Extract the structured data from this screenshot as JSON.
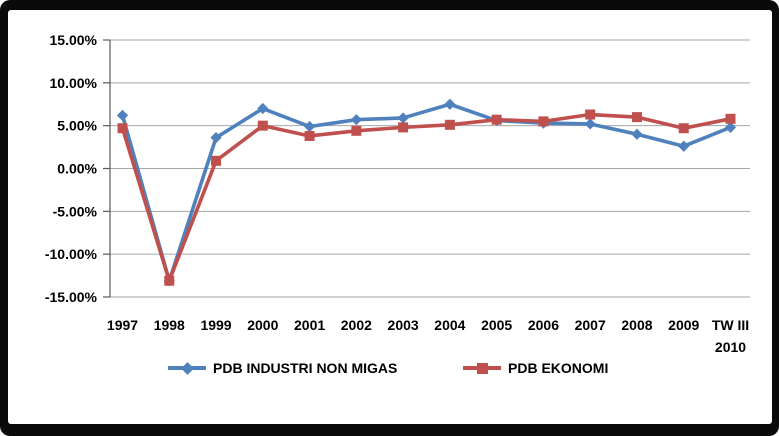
{
  "chart_data": {
    "type": "line",
    "title": "",
    "xlabel": "",
    "ylabel": "",
    "categories": [
      "1997",
      "1998",
      "1999",
      "2000",
      "2001",
      "2002",
      "2003",
      "2004",
      "2005",
      "2006",
      "2007",
      "2008",
      "2009",
      "TW III\n2010"
    ],
    "series": [
      {
        "name": "PDB INDUSTRI NON MIGAS",
        "color": "#4F81BD",
        "marker": "diamond",
        "values": [
          6.2,
          -13.1,
          3.6,
          7.0,
          4.9,
          5.7,
          5.9,
          7.5,
          5.6,
          5.3,
          5.2,
          4.0,
          2.6,
          4.8
        ]
      },
      {
        "name": "PDB EKONOMI",
        "color": "#C0504D",
        "marker": "square",
        "values": [
          4.7,
          -13.1,
          0.9,
          5.0,
          3.8,
          4.4,
          4.8,
          5.1,
          5.7,
          5.5,
          6.3,
          6.0,
          4.7,
          5.8
        ]
      }
    ],
    "ylim": [
      -15,
      15
    ],
    "ytick_step": 5,
    "ytick_labels": [
      "15.00%",
      "10.00%",
      "5.00%",
      "0.00%",
      "-5.00%",
      "-10.00%",
      "-15.00%"
    ],
    "grid": "horizontal",
    "legend_position": "bottom"
  },
  "legend": {
    "items": [
      {
        "label": "PDB INDUSTRI NON MIGAS",
        "color": "#4F81BD",
        "marker": "diamond"
      },
      {
        "label": "PDB EKONOMI",
        "color": "#C0504D",
        "marker": "square"
      }
    ]
  },
  "colors": {
    "series_blue": "#4F81BD",
    "series_red": "#C0504D",
    "gridline": "#A6A6A6",
    "axis": "#595959",
    "text": "#000000",
    "frame": "#000000",
    "background": "#FFFFFF"
  }
}
